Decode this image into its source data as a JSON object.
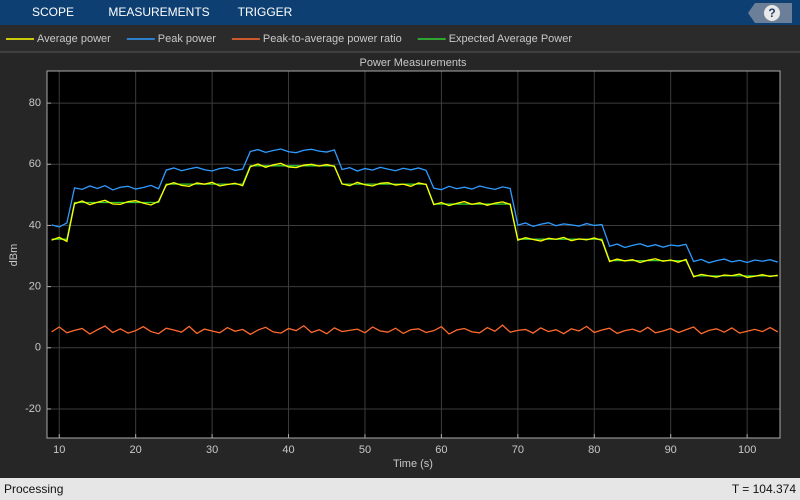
{
  "toolbar": {
    "tabs": [
      "SCOPE",
      "MEASUREMENTS",
      "TRIGGER"
    ],
    "help": "?"
  },
  "chart_data": {
    "type": "line",
    "title": "Power Measurements",
    "x_label": "Time (s)",
    "y_label": "dBm",
    "xlim": [
      8.4,
      104.3
    ],
    "xticks": [
      10,
      20,
      30,
      40,
      50,
      60,
      70,
      80,
      90,
      100
    ],
    "ylim": [
      -29.5,
      90.5
    ],
    "yticks": [
      -20,
      0,
      20,
      40,
      60,
      80
    ],
    "grid": true,
    "legend": "top",
    "x": [
      9,
      10,
      11,
      12,
      13,
      14,
      15,
      16,
      17,
      18,
      19,
      20,
      21,
      22,
      23,
      24,
      25,
      26,
      27,
      28,
      29,
      30,
      31,
      32,
      33,
      34,
      35,
      36,
      37,
      38,
      39,
      40,
      41,
      42,
      43,
      44,
      45,
      46,
      47,
      48,
      49,
      50,
      51,
      52,
      53,
      54,
      55,
      56,
      57,
      58,
      59,
      60,
      61,
      62,
      63,
      64,
      65,
      66,
      67,
      68,
      69,
      70,
      71,
      72,
      73,
      74,
      75,
      76,
      77,
      78,
      79,
      80,
      81,
      82,
      83,
      84,
      85,
      86,
      87,
      88,
      89,
      90,
      91,
      92,
      93,
      94,
      95,
      96,
      97,
      98,
      99,
      100,
      101,
      102,
      103,
      104
    ],
    "series": [
      {
        "name": "Expected Average Power",
        "color": "#33cc33",
        "values": [
          35.5,
          35.5,
          35.5,
          47.5,
          47.5,
          47.5,
          47.5,
          47.5,
          47.5,
          47.5,
          47.5,
          47.5,
          47.5,
          47.5,
          47.5,
          53.5,
          53.5,
          53.5,
          53.5,
          53.5,
          53.5,
          53.5,
          53.5,
          53.5,
          53.5,
          53.5,
          59.5,
          59.5,
          59.5,
          59.5,
          59.5,
          59.5,
          59.5,
          59.5,
          59.5,
          59.5,
          59.5,
          59.5,
          53.5,
          53.5,
          53.5,
          53.5,
          53.5,
          53.5,
          53.5,
          53.5,
          53.5,
          53.5,
          53.5,
          53.5,
          47,
          47,
          47,
          47,
          47,
          47,
          47,
          47,
          47,
          47,
          47,
          35.5,
          35.5,
          35.5,
          35.5,
          35.5,
          35.5,
          35.5,
          35.5,
          35.5,
          35.5,
          35.5,
          35.5,
          28.5,
          28.5,
          28.5,
          28.5,
          28.5,
          28.5,
          28.5,
          28.5,
          28.5,
          28.5,
          28.5,
          23.5,
          23.5,
          23.5,
          23.5,
          23.5,
          23.5,
          23.5,
          23.5,
          23.5,
          23.5,
          23.5,
          23.5
        ]
      },
      {
        "name": "Peak-to-average power ratio",
        "color": "#ff6a2e",
        "values": [
          5.2,
          6.8,
          4.9,
          5.7,
          6.3,
          4.5,
          5.9,
          7.1,
          5.0,
          6.2,
          4.8,
          5.6,
          6.9,
          5.3,
          4.6,
          6.4,
          5.8,
          5.1,
          7.0,
          4.7,
          6.1,
          5.5,
          4.9,
          6.6,
          5.4,
          6.0,
          4.4,
          5.8,
          6.7,
          5.2,
          4.8,
          6.3,
          5.6,
          7.2,
          5.0,
          5.9,
          4.6,
          6.5,
          5.3,
          5.7,
          6.1,
          4.9,
          6.8,
          5.5,
          5.1,
          6.4,
          4.7,
          5.9,
          6.2,
          5.0,
          5.6,
          6.9,
          4.5,
          5.8,
          6.3,
          5.2,
          4.9,
          6.6,
          5.4,
          7.4,
          5.1,
          5.7,
          6.0,
          4.8,
          6.5,
          5.3,
          5.9,
          4.6,
          6.2,
          5.5,
          7.0,
          5.0,
          5.8,
          6.4,
          4.7,
          5.6,
          6.1,
          5.2,
          6.7,
          4.9,
          5.5,
          6.3,
          5.0,
          5.9,
          6.8,
          4.6,
          5.7,
          6.2,
          5.1,
          6.5,
          4.8,
          5.4,
          6.0,
          5.3,
          6.6,
          5.2
        ]
      },
      {
        "name": "Peak power",
        "color": "#2f9bff",
        "values": [
          40.2,
          39.5,
          40.8,
          52.3,
          51.8,
          52.9,
          52.1,
          53.0,
          51.6,
          52.5,
          52.8,
          51.9,
          52.4,
          53.1,
          52.0,
          58.1,
          58.8,
          57.9,
          58.5,
          59.0,
          58.2,
          57.8,
          58.6,
          58.9,
          58.0,
          58.4,
          64.2,
          64.8,
          63.9,
          64.5,
          65.0,
          64.1,
          63.8,
          64.6,
          64.9,
          64.3,
          64.0,
          64.7,
          58.3,
          58.9,
          57.8,
          58.6,
          58.1,
          59.0,
          58.4,
          57.9,
          58.7,
          58.2,
          58.8,
          58.0,
          52.2,
          51.7,
          52.8,
          52.0,
          52.5,
          51.9,
          52.9,
          52.3,
          51.8,
          52.6,
          52.1,
          40.1,
          40.8,
          39.7,
          40.4,
          40.9,
          39.9,
          40.5,
          40.2,
          39.8,
          40.6,
          40.0,
          40.3,
          33.2,
          33.9,
          32.8,
          33.5,
          34.0,
          33.1,
          33.7,
          32.9,
          33.6,
          33.3,
          33.8,
          28.2,
          28.9,
          27.8,
          28.5,
          29.0,
          28.1,
          28.6,
          27.9,
          28.7,
          28.3,
          28.8,
          28.0
        ]
      },
      {
        "name": "Average power",
        "color": "#ffff00",
        "values": [
          35.2,
          36.1,
          34.8,
          47.1,
          48.0,
          46.8,
          47.6,
          48.2,
          47.0,
          46.9,
          47.8,
          48.1,
          47.3,
          46.7,
          47.9,
          53.2,
          54.0,
          53.1,
          52.8,
          53.9,
          53.5,
          54.1,
          52.9,
          53.4,
          53.8,
          53.0,
          59.2,
          60.1,
          59.0,
          59.8,
          60.3,
          59.1,
          58.9,
          59.7,
          60.0,
          59.4,
          59.9,
          59.3,
          53.6,
          53.0,
          54.1,
          53.3,
          52.9,
          53.8,
          54.0,
          53.2,
          53.5,
          52.8,
          53.9,
          53.4,
          46.8,
          47.5,
          46.5,
          47.2,
          47.8,
          46.9,
          47.4,
          46.6,
          47.3,
          47.7,
          46.9,
          35.2,
          36.0,
          35.4,
          34.9,
          35.8,
          35.5,
          36.1,
          35.0,
          35.6,
          35.3,
          35.9,
          35.1,
          28.2,
          29.0,
          28.4,
          28.8,
          27.9,
          28.6,
          29.1,
          28.3,
          28.7,
          28.0,
          28.9,
          23.2,
          24.0,
          23.5,
          23.1,
          23.8,
          23.6,
          24.1,
          23.0,
          23.4,
          23.9,
          23.3,
          23.7
        ]
      }
    ],
    "legend_order": [
      3,
      2,
      1,
      0
    ]
  },
  "status": {
    "left": "Processing",
    "right": "T = 104.374"
  }
}
